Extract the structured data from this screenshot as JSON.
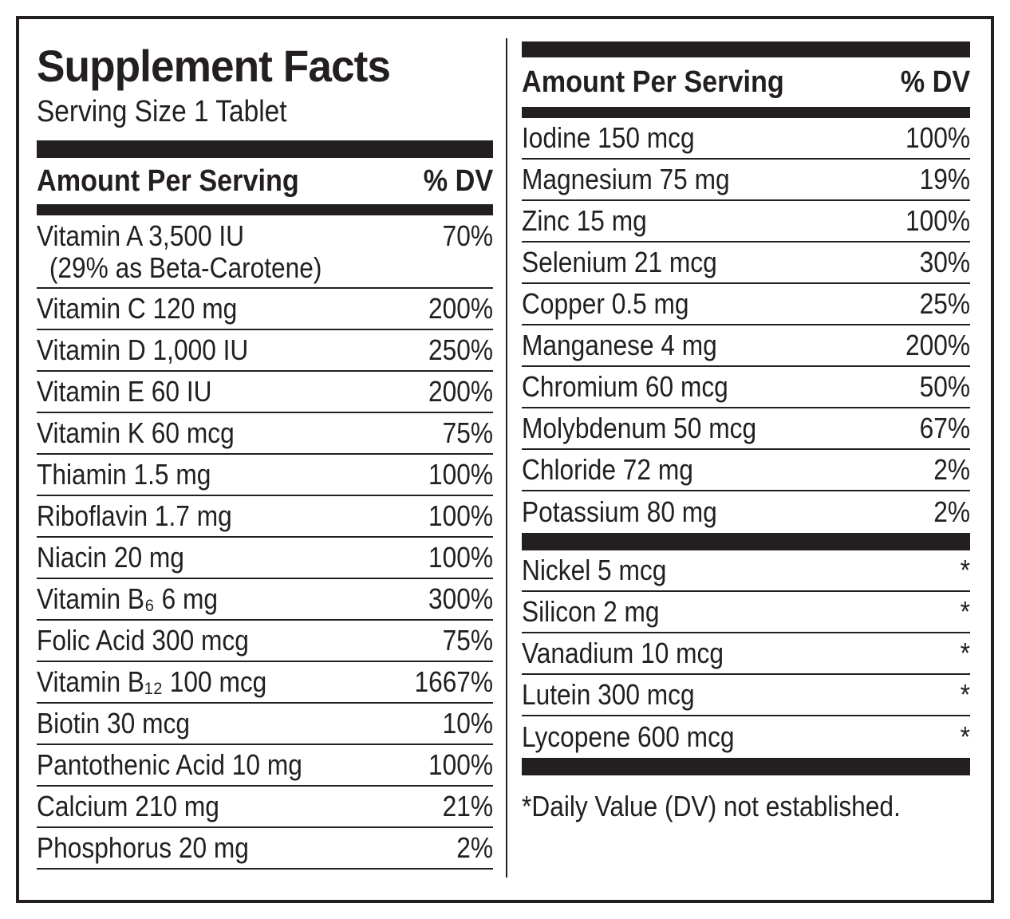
{
  "title": "Supplement Facts",
  "serving_size": "Serving Size 1 Tablet",
  "header": {
    "amount_label": "Amount Per Serving",
    "dv_label": "% DV"
  },
  "left_rows": [
    {
      "name": "Vitamin A 3,500 IU",
      "sub": "(29% as Beta-Carotene)",
      "dv": "70%"
    },
    {
      "name": "Vitamin C 120 mg",
      "dv": "200%"
    },
    {
      "name": "Vitamin D 1,000 IU",
      "dv": "250%"
    },
    {
      "name": "Vitamin E  60 IU",
      "dv": "200%"
    },
    {
      "name": "Vitamin K 60 mcg",
      "dv": "75%"
    },
    {
      "name": "Thiamin 1.5 mg",
      "dv": "100%"
    },
    {
      "name": "Riboflavin 1.7 mg",
      "dv": "100%"
    },
    {
      "name": "Niacin 20 mg",
      "dv": "100%"
    },
    {
      "name": "Vitamin B₆ 6 mg",
      "dv": "300%"
    },
    {
      "name": "Folic Acid 300 mcg",
      "dv": "75%"
    },
    {
      "name": "Vitamin B₁₂ 100 mcg",
      "dv": "1667%"
    },
    {
      "name": "Biotin 30 mcg",
      "dv": "10%"
    },
    {
      "name": "Pantothenic Acid 10 mg",
      "dv": "100%"
    },
    {
      "name": "Calcium 210 mg",
      "dv": "21%"
    },
    {
      "name": "Phosphorus 20 mg",
      "dv": "2%"
    }
  ],
  "right_rows": [
    {
      "name": "Iodine 150 mcg",
      "dv": "100%"
    },
    {
      "name": "Magnesium 75 mg",
      "dv": "19%"
    },
    {
      "name": "Zinc 15 mg",
      "dv": "100%"
    },
    {
      "name": "Selenium 21 mcg",
      "dv": "30%"
    },
    {
      "name": "Copper 0.5 mg",
      "dv": "25%"
    },
    {
      "name": "Manganese 4 mg",
      "dv": "200%"
    },
    {
      "name": "Chromium 60 mcg",
      "dv": "50%"
    },
    {
      "name": "Molybdenum 50 mcg",
      "dv": "67%"
    },
    {
      "name": "Chloride 72 mg",
      "dv": "2%"
    },
    {
      "name": "Potassium 80 mg",
      "dv": "2%"
    }
  ],
  "right_rows_no_dv": [
    {
      "name": "Nickel 5 mcg",
      "dv": "*"
    },
    {
      "name": "Silicon 2 mg",
      "dv": "*"
    },
    {
      "name": "Vanadium 10 mcg",
      "dv": "*"
    },
    {
      "name": "Lutein 300 mcg",
      "dv": "*"
    },
    {
      "name": "Lycopene 600 mcg",
      "dv": "*"
    }
  ],
  "footnote": "*Daily Value (DV) not established."
}
